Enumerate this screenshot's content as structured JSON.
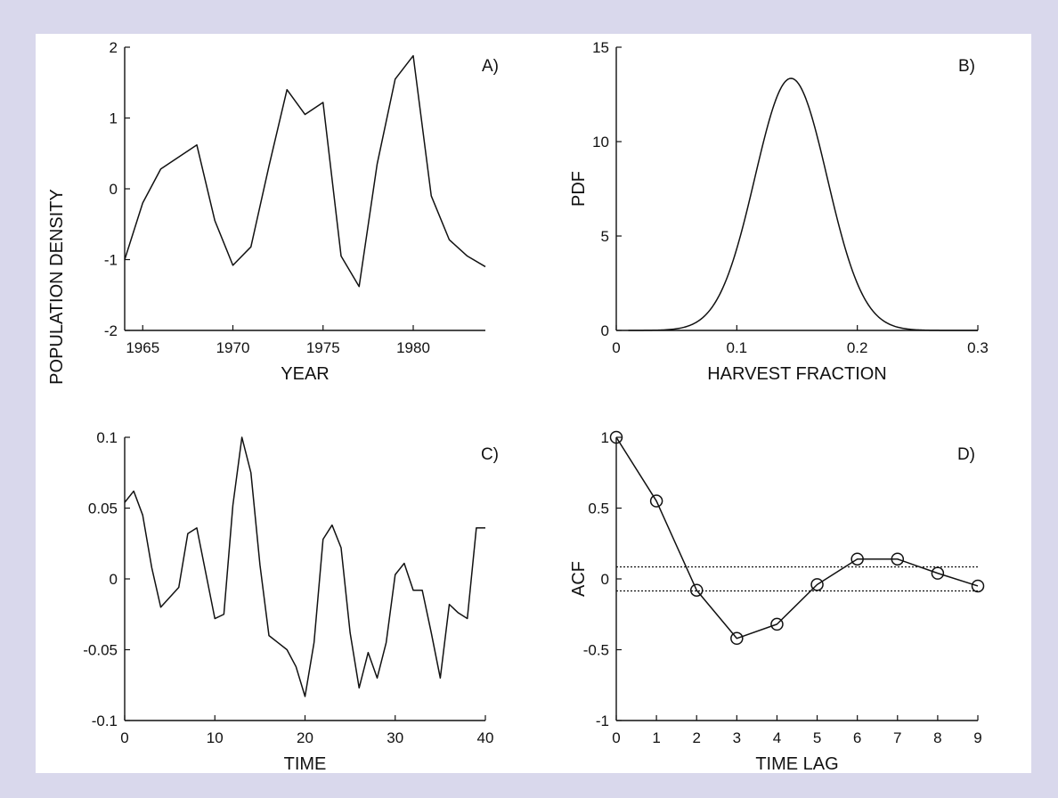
{
  "chart_data": [
    {
      "id": "A",
      "type": "line",
      "panel_label": "A)",
      "xlabel": "YEAR",
      "ylabel": "POPULATION DENSITY",
      "xlim": [
        1964,
        1984
      ],
      "ylim": [
        -2,
        2
      ],
      "xticks": [
        1965,
        1970,
        1975,
        1980
      ],
      "yticks": [
        -2,
        -1,
        0,
        1,
        2
      ],
      "x": [
        1964,
        1965,
        1966,
        1967,
        1968,
        1969,
        1970,
        1971,
        1972,
        1973,
        1974,
        1975,
        1976,
        1977,
        1978,
        1979,
        1980,
        1981,
        1982,
        1983,
        1984
      ],
      "values": [
        -1.0,
        -0.2,
        0.28,
        0.45,
        0.62,
        -0.45,
        -1.08,
        -0.82,
        0.32,
        1.4,
        1.05,
        1.22,
        -0.95,
        -1.38,
        0.35,
        1.55,
        1.88,
        -0.1,
        -0.72,
        -0.95,
        -1.1
      ]
    },
    {
      "id": "B",
      "type": "line",
      "panel_label": "B)",
      "xlabel": "HARVEST FRACTION",
      "ylabel": "PDF",
      "xlim": [
        0,
        0.3
      ],
      "ylim": [
        0,
        15
      ],
      "xticks": [
        0,
        0.1,
        0.2,
        0.3
      ],
      "yticks": [
        0,
        5,
        10,
        15
      ],
      "curve": {
        "kind": "normal",
        "mean": 0.145,
        "sd": 0.03,
        "peak": 13.35,
        "x_start": 0.01,
        "x_end": 0.3
      }
    },
    {
      "id": "C",
      "type": "line",
      "panel_label": "C)",
      "xlabel": "TIME",
      "ylabel": "",
      "xlim": [
        0,
        40
      ],
      "ylim": [
        -0.1,
        0.1
      ],
      "xticks": [
        0,
        10,
        20,
        30,
        40
      ],
      "yticks": [
        -0.1,
        -0.05,
        0,
        0.05,
        0.1
      ],
      "ytick_labels": [
        "-0.1",
        "-0.05",
        "0",
        "0.05",
        "0.1"
      ],
      "x": [
        0,
        1,
        2,
        3,
        4,
        5,
        6,
        7,
        8,
        9,
        10,
        11,
        12,
        13,
        14,
        15,
        16,
        17,
        18,
        19,
        20,
        21,
        22,
        23,
        24,
        25,
        26,
        27,
        28,
        29,
        30,
        31,
        32,
        33,
        34,
        35,
        36,
        37,
        38,
        39,
        40
      ],
      "values": [
        0.054,
        0.062,
        0.045,
        0.008,
        -0.02,
        -0.013,
        -0.006,
        0.032,
        0.036,
        0.004,
        -0.028,
        -0.025,
        0.052,
        0.1,
        0.075,
        0.01,
        -0.04,
        -0.045,
        -0.05,
        -0.062,
        -0.083,
        -0.045,
        0.028,
        0.038,
        0.022,
        -0.038,
        -0.077,
        -0.052,
        -0.07,
        -0.045,
        0.003,
        0.011,
        -0.008,
        -0.008,
        -0.038,
        -0.07,
        -0.018,
        -0.024,
        -0.028,
        0.036,
        0.036
      ]
    },
    {
      "id": "D",
      "type": "line",
      "panel_label": "D)",
      "xlabel": "TIME LAG",
      "ylabel": "ACF",
      "xlim": [
        0,
        9
      ],
      "ylim": [
        -1,
        1
      ],
      "xticks": [
        0,
        1,
        2,
        3,
        4,
        5,
        6,
        7,
        8,
        9
      ],
      "yticks": [
        -1,
        -0.5,
        0,
        0.5,
        1
      ],
      "x": [
        0,
        1,
        2,
        3,
        4,
        5,
        6,
        7,
        8,
        9
      ],
      "values": [
        1.0,
        0.55,
        -0.08,
        -0.42,
        -0.32,
        -0.04,
        0.14,
        0.14,
        0.04,
        -0.05
      ],
      "confidence_band": [
        -0.085,
        0.085
      ]
    }
  ]
}
